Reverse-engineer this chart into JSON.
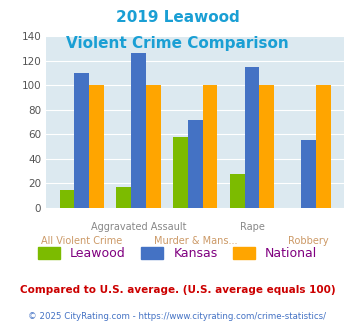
{
  "title_line1": "2019 Leawood",
  "title_line2": "Violent Crime Comparison",
  "title_color": "#1a9fd4",
  "categories": [
    "All Violent Crime",
    "Aggravated Assault",
    "Murder & Mans...",
    "Rape",
    "Robbery"
  ],
  "leawood": [
    15,
    17,
    58,
    28,
    0
  ],
  "kansas": [
    110,
    126,
    72,
    115,
    55
  ],
  "national": [
    100,
    100,
    100,
    100,
    100
  ],
  "leawood_color": "#7cbb00",
  "kansas_color": "#4472c4",
  "national_color": "#ffa500",
  "ylim": [
    0,
    140
  ],
  "yticks": [
    0,
    20,
    40,
    60,
    80,
    100,
    120,
    140
  ],
  "plot_bg": "#dce9f0",
  "legend_labels": [
    "Leawood",
    "Kansas",
    "National"
  ],
  "legend_label_color": "#800080",
  "footnote1": "Compared to U.S. average. (U.S. average equals 100)",
  "footnote2": "© 2025 CityRating.com - https://www.cityrating.com/crime-statistics/",
  "footnote1_color": "#cc0000",
  "footnote2_color": "#4472c4",
  "top_xlabel_color": "#888888",
  "bottom_xlabel_color": "#cc9966",
  "top_xlabels": {
    "1": "Aggravated Assault",
    "3": "Rape"
  },
  "bottom_xlabels": {
    "0": "All Violent Crime",
    "2": "Murder & Mans...",
    "4": "Robbery"
  }
}
